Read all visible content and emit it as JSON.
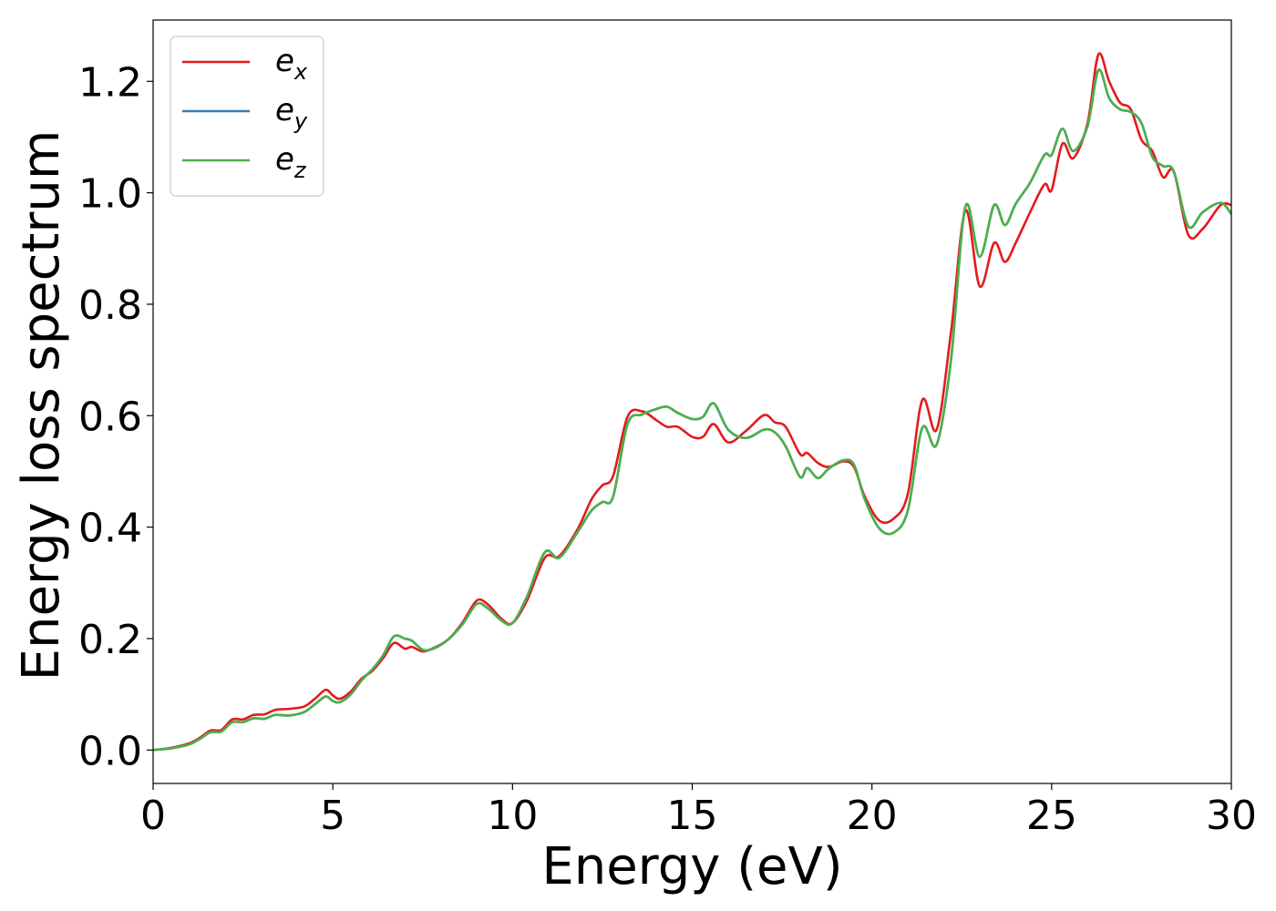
{
  "chart_data": {
    "type": "line",
    "title": "",
    "xlabel": "Energy (eV)",
    "ylabel": "Energy loss spectrum",
    "xlim": [
      0,
      30
    ],
    "ylim": [
      -0.06,
      1.31
    ],
    "xticks": [
      0,
      5,
      10,
      15,
      20,
      25,
      30
    ],
    "xtick_labels": [
      "0",
      "5",
      "10",
      "15",
      "20",
      "25",
      "30"
    ],
    "yticks": [
      0.0,
      0.2,
      0.4,
      0.6,
      0.8,
      1.0,
      1.2
    ],
    "ytick_labels": [
      "0.0",
      "0.2",
      "0.4",
      "0.6",
      "0.8",
      "1.0",
      "1.2"
    ],
    "grid": false,
    "legend_position": "top-left",
    "series": [
      {
        "name": "e_x",
        "legend_base": "e",
        "legend_sub": "x",
        "color": "#e41a1c",
        "points": [
          [
            0,
            0.0
          ],
          [
            0.5,
            0.004
          ],
          [
            1.0,
            0.012
          ],
          [
            1.3,
            0.022
          ],
          [
            1.6,
            0.035
          ],
          [
            1.9,
            0.036
          ],
          [
            2.2,
            0.055
          ],
          [
            2.5,
            0.055
          ],
          [
            2.8,
            0.063
          ],
          [
            3.1,
            0.064
          ],
          [
            3.4,
            0.072
          ],
          [
            3.8,
            0.074
          ],
          [
            4.2,
            0.078
          ],
          [
            4.5,
            0.092
          ],
          [
            4.8,
            0.108
          ],
          [
            5.0,
            0.098
          ],
          [
            5.2,
            0.092
          ],
          [
            5.5,
            0.105
          ],
          [
            5.8,
            0.128
          ],
          [
            6.1,
            0.142
          ],
          [
            6.4,
            0.165
          ],
          [
            6.7,
            0.192
          ],
          [
            7.0,
            0.182
          ],
          [
            7.2,
            0.185
          ],
          [
            7.5,
            0.177
          ],
          [
            7.8,
            0.183
          ],
          [
            8.2,
            0.198
          ],
          [
            8.6,
            0.228
          ],
          [
            9.0,
            0.268
          ],
          [
            9.3,
            0.262
          ],
          [
            9.7,
            0.235
          ],
          [
            10.0,
            0.228
          ],
          [
            10.4,
            0.268
          ],
          [
            10.9,
            0.345
          ],
          [
            11.3,
            0.348
          ],
          [
            11.8,
            0.395
          ],
          [
            12.2,
            0.45
          ],
          [
            12.5,
            0.475
          ],
          [
            12.8,
            0.492
          ],
          [
            13.2,
            0.598
          ],
          [
            13.6,
            0.608
          ],
          [
            14.0,
            0.592
          ],
          [
            14.3,
            0.58
          ],
          [
            14.6,
            0.58
          ],
          [
            15.0,
            0.562
          ],
          [
            15.3,
            0.562
          ],
          [
            15.6,
            0.585
          ],
          [
            16.0,
            0.552
          ],
          [
            16.5,
            0.573
          ],
          [
            17.0,
            0.601
          ],
          [
            17.3,
            0.588
          ],
          [
            17.6,
            0.58
          ],
          [
            18.0,
            0.531
          ],
          [
            18.2,
            0.533
          ],
          [
            18.5,
            0.515
          ],
          [
            18.8,
            0.508
          ],
          [
            19.2,
            0.518
          ],
          [
            19.5,
            0.508
          ],
          [
            19.8,
            0.455
          ],
          [
            20.2,
            0.412
          ],
          [
            20.6,
            0.415
          ],
          [
            21.0,
            0.46
          ],
          [
            21.4,
            0.628
          ],
          [
            21.8,
            0.575
          ],
          [
            22.2,
            0.75
          ],
          [
            22.6,
            0.968
          ],
          [
            23.0,
            0.832
          ],
          [
            23.4,
            0.91
          ],
          [
            23.7,
            0.876
          ],
          [
            24.0,
            0.91
          ],
          [
            24.4,
            0.965
          ],
          [
            24.8,
            1.015
          ],
          [
            25.0,
            1.005
          ],
          [
            25.3,
            1.088
          ],
          [
            25.6,
            1.062
          ],
          [
            26.0,
            1.125
          ],
          [
            26.3,
            1.248
          ],
          [
            26.6,
            1.2
          ],
          [
            26.9,
            1.162
          ],
          [
            27.2,
            1.15
          ],
          [
            27.5,
            1.095
          ],
          [
            27.8,
            1.075
          ],
          [
            28.1,
            1.028
          ],
          [
            28.4,
            1.038
          ],
          [
            28.8,
            0.925
          ],
          [
            29.2,
            0.935
          ],
          [
            29.7,
            0.978
          ],
          [
            30.0,
            0.978
          ]
        ]
      },
      {
        "name": "e_y",
        "legend_base": "e",
        "legend_sub": "y",
        "color": "#377eb8",
        "points": [
          [
            0,
            0.0
          ],
          [
            0.5,
            0.003
          ],
          [
            1.0,
            0.01
          ],
          [
            1.3,
            0.02
          ],
          [
            1.6,
            0.032
          ],
          [
            1.9,
            0.033
          ],
          [
            2.2,
            0.05
          ],
          [
            2.5,
            0.05
          ],
          [
            2.8,
            0.057
          ],
          [
            3.1,
            0.056
          ],
          [
            3.4,
            0.063
          ],
          [
            3.8,
            0.062
          ],
          [
            4.2,
            0.068
          ],
          [
            4.5,
            0.082
          ],
          [
            4.8,
            0.096
          ],
          [
            5.0,
            0.088
          ],
          [
            5.2,
            0.086
          ],
          [
            5.5,
            0.1
          ],
          [
            5.8,
            0.125
          ],
          [
            6.1,
            0.145
          ],
          [
            6.4,
            0.17
          ],
          [
            6.7,
            0.204
          ],
          [
            7.0,
            0.2
          ],
          [
            7.2,
            0.196
          ],
          [
            7.5,
            0.18
          ],
          [
            7.8,
            0.182
          ],
          [
            8.2,
            0.198
          ],
          [
            8.6,
            0.225
          ],
          [
            9.0,
            0.262
          ],
          [
            9.3,
            0.255
          ],
          [
            9.7,
            0.232
          ],
          [
            10.0,
            0.228
          ],
          [
            10.4,
            0.275
          ],
          [
            10.9,
            0.355
          ],
          [
            11.3,
            0.345
          ],
          [
            11.8,
            0.39
          ],
          [
            12.2,
            0.43
          ],
          [
            12.5,
            0.445
          ],
          [
            12.8,
            0.455
          ],
          [
            13.2,
            0.585
          ],
          [
            13.6,
            0.602
          ],
          [
            14.0,
            0.612
          ],
          [
            14.3,
            0.616
          ],
          [
            14.6,
            0.605
          ],
          [
            15.0,
            0.594
          ],
          [
            15.3,
            0.598
          ],
          [
            15.6,
            0.622
          ],
          [
            16.0,
            0.575
          ],
          [
            16.5,
            0.56
          ],
          [
            17.0,
            0.575
          ],
          [
            17.3,
            0.57
          ],
          [
            17.6,
            0.545
          ],
          [
            18.0,
            0.49
          ],
          [
            18.2,
            0.506
          ],
          [
            18.5,
            0.488
          ],
          [
            18.8,
            0.505
          ],
          [
            19.2,
            0.52
          ],
          [
            19.5,
            0.512
          ],
          [
            19.8,
            0.45
          ],
          [
            20.2,
            0.398
          ],
          [
            20.6,
            0.39
          ],
          [
            21.0,
            0.43
          ],
          [
            21.4,
            0.578
          ],
          [
            21.8,
            0.548
          ],
          [
            22.2,
            0.7
          ],
          [
            22.6,
            0.975
          ],
          [
            23.0,
            0.885
          ],
          [
            23.4,
            0.978
          ],
          [
            23.7,
            0.942
          ],
          [
            24.0,
            0.98
          ],
          [
            24.4,
            1.018
          ],
          [
            24.8,
            1.068
          ],
          [
            25.0,
            1.068
          ],
          [
            25.3,
            1.115
          ],
          [
            25.6,
            1.075
          ],
          [
            26.0,
            1.12
          ],
          [
            26.3,
            1.22
          ],
          [
            26.6,
            1.17
          ],
          [
            26.9,
            1.15
          ],
          [
            27.2,
            1.145
          ],
          [
            27.5,
            1.125
          ],
          [
            27.8,
            1.065
          ],
          [
            28.1,
            1.048
          ],
          [
            28.4,
            1.038
          ],
          [
            28.8,
            0.94
          ],
          [
            29.2,
            0.965
          ],
          [
            29.7,
            0.982
          ],
          [
            30.0,
            0.962
          ]
        ]
      },
      {
        "name": "e_z",
        "legend_base": "e",
        "legend_sub": "z",
        "color": "#4daf4a",
        "points": [
          [
            0,
            0.0
          ],
          [
            0.5,
            0.003
          ],
          [
            1.0,
            0.01
          ],
          [
            1.3,
            0.02
          ],
          [
            1.6,
            0.032
          ],
          [
            1.9,
            0.033
          ],
          [
            2.2,
            0.05
          ],
          [
            2.5,
            0.05
          ],
          [
            2.8,
            0.057
          ],
          [
            3.1,
            0.056
          ],
          [
            3.4,
            0.063
          ],
          [
            3.8,
            0.062
          ],
          [
            4.2,
            0.068
          ],
          [
            4.5,
            0.082
          ],
          [
            4.8,
            0.096
          ],
          [
            5.0,
            0.088
          ],
          [
            5.2,
            0.086
          ],
          [
            5.5,
            0.1
          ],
          [
            5.8,
            0.125
          ],
          [
            6.1,
            0.145
          ],
          [
            6.4,
            0.17
          ],
          [
            6.7,
            0.204
          ],
          [
            7.0,
            0.2
          ],
          [
            7.2,
            0.196
          ],
          [
            7.5,
            0.18
          ],
          [
            7.8,
            0.182
          ],
          [
            8.2,
            0.198
          ],
          [
            8.6,
            0.225
          ],
          [
            9.0,
            0.262
          ],
          [
            9.3,
            0.255
          ],
          [
            9.7,
            0.232
          ],
          [
            10.0,
            0.228
          ],
          [
            10.4,
            0.275
          ],
          [
            10.9,
            0.355
          ],
          [
            11.3,
            0.345
          ],
          [
            11.8,
            0.39
          ],
          [
            12.2,
            0.43
          ],
          [
            12.5,
            0.445
          ],
          [
            12.8,
            0.455
          ],
          [
            13.2,
            0.585
          ],
          [
            13.6,
            0.602
          ],
          [
            14.0,
            0.612
          ],
          [
            14.3,
            0.616
          ],
          [
            14.6,
            0.605
          ],
          [
            15.0,
            0.594
          ],
          [
            15.3,
            0.598
          ],
          [
            15.6,
            0.622
          ],
          [
            16.0,
            0.575
          ],
          [
            16.5,
            0.56
          ],
          [
            17.0,
            0.575
          ],
          [
            17.3,
            0.57
          ],
          [
            17.6,
            0.545
          ],
          [
            18.0,
            0.49
          ],
          [
            18.2,
            0.506
          ],
          [
            18.5,
            0.488
          ],
          [
            18.8,
            0.505
          ],
          [
            19.2,
            0.52
          ],
          [
            19.5,
            0.512
          ],
          [
            19.8,
            0.45
          ],
          [
            20.2,
            0.398
          ],
          [
            20.6,
            0.39
          ],
          [
            21.0,
            0.43
          ],
          [
            21.4,
            0.578
          ],
          [
            21.8,
            0.548
          ],
          [
            22.2,
            0.7
          ],
          [
            22.6,
            0.975
          ],
          [
            23.0,
            0.885
          ],
          [
            23.4,
            0.978
          ],
          [
            23.7,
            0.942
          ],
          [
            24.0,
            0.98
          ],
          [
            24.4,
            1.018
          ],
          [
            24.8,
            1.068
          ],
          [
            25.0,
            1.068
          ],
          [
            25.3,
            1.115
          ],
          [
            25.6,
            1.075
          ],
          [
            26.0,
            1.12
          ],
          [
            26.3,
            1.22
          ],
          [
            26.6,
            1.17
          ],
          [
            26.9,
            1.15
          ],
          [
            27.2,
            1.145
          ],
          [
            27.5,
            1.125
          ],
          [
            27.8,
            1.065
          ],
          [
            28.1,
            1.048
          ],
          [
            28.4,
            1.038
          ],
          [
            28.8,
            0.94
          ],
          [
            29.2,
            0.965
          ],
          [
            29.7,
            0.982
          ],
          [
            30.0,
            0.962
          ]
        ]
      }
    ]
  }
}
